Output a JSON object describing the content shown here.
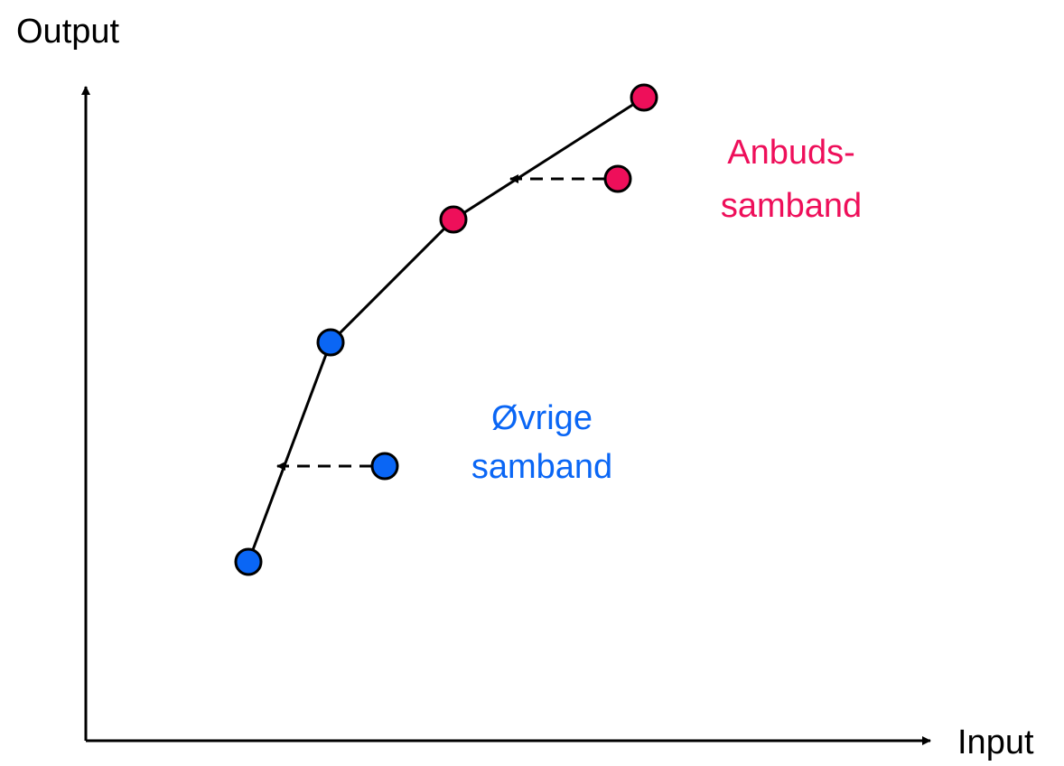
{
  "axes": {
    "y_label": "Output",
    "x_label": "Input"
  },
  "groups": [
    {
      "lines": [
        "Anbuds-",
        "samband"
      ]
    },
    {
      "lines": [
        "Øvrige",
        "samband"
      ]
    }
  ]
}
